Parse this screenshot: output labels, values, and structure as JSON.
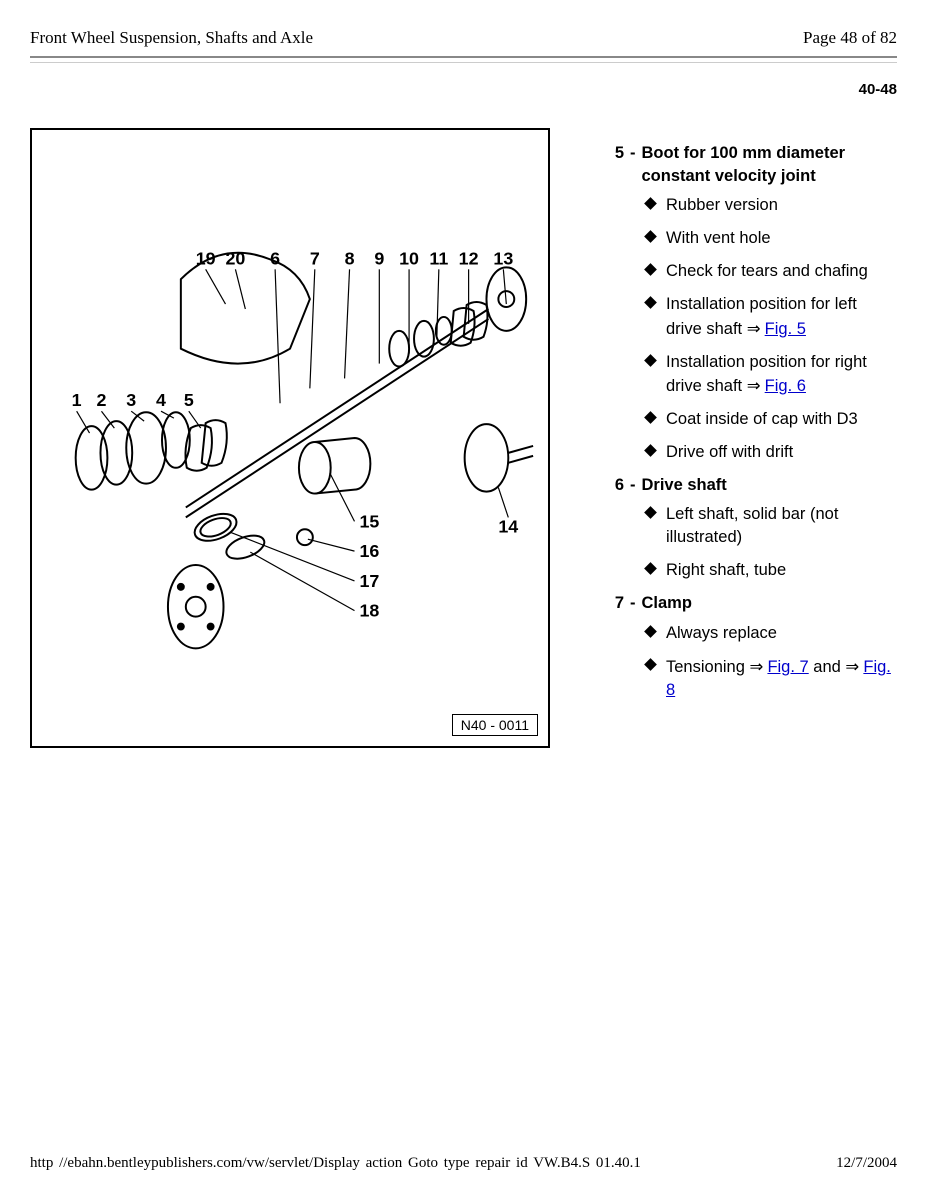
{
  "header": {
    "title": "Front Wheel Suspension, Shafts and Axle",
    "page_of": "Page 48 of 82"
  },
  "page_ref": "40-48",
  "diagram": {
    "caption": "N40 - 0011",
    "top_labels": [
      "19",
      "20",
      "6",
      "7",
      "8",
      "9",
      "10",
      "11",
      "12",
      "13"
    ],
    "left_labels": [
      "1",
      "2",
      "3",
      "4",
      "5"
    ],
    "right_side_labels": [
      "14"
    ],
    "lower_labels": [
      "15",
      "16",
      "17",
      "18"
    ]
  },
  "parts": [
    {
      "num": "5",
      "title": "Boot for 100 mm diameter constant velocity joint",
      "bullets": [
        {
          "segments": [
            {
              "t": "Rubber version"
            }
          ]
        },
        {
          "segments": [
            {
              "t": "With vent hole"
            }
          ]
        },
        {
          "segments": [
            {
              "t": "Check for tears and chafing"
            }
          ]
        },
        {
          "segments": [
            {
              "t": "Installation position for left drive shaft "
            },
            {
              "t": "⇒ ",
              "cls": "arrow"
            },
            {
              "t": "Fig. 5",
              "link": true
            }
          ]
        },
        {
          "segments": [
            {
              "t": "Installation position for right drive shaft "
            },
            {
              "t": "⇒ ",
              "cls": "arrow"
            },
            {
              "t": "Fig. 6",
              "link": true
            }
          ]
        },
        {
          "segments": [
            {
              "t": "Coat inside of cap with D3"
            }
          ]
        },
        {
          "segments": [
            {
              "t": "Drive off with drift"
            }
          ]
        }
      ]
    },
    {
      "num": "6",
      "title": "Drive shaft",
      "bullets": [
        {
          "segments": [
            {
              "t": "Left shaft, solid bar (not illustrated)"
            }
          ]
        },
        {
          "segments": [
            {
              "t": "Right shaft, tube"
            }
          ]
        }
      ]
    },
    {
      "num": "7",
      "title": "Clamp",
      "bullets": [
        {
          "segments": [
            {
              "t": "Always replace"
            }
          ]
        },
        {
          "segments": [
            {
              "t": "Tensioning "
            },
            {
              "t": "⇒ ",
              "cls": "arrow"
            },
            {
              "t": "Fig. 7",
              "link": true
            },
            {
              "t": " and "
            },
            {
              "t": "⇒ ",
              "cls": "arrow"
            },
            {
              "t": "Fig. 8",
              "link": true
            }
          ]
        }
      ]
    }
  ],
  "footer": {
    "url": "http //ebahn.bentleypublishers.com/vw/servlet/Display action Goto  type repair  id VW.B4.S  01.40.1",
    "date": "12/7/2004"
  },
  "colors": {
    "link": "#0000cc",
    "rule": "#888888"
  }
}
